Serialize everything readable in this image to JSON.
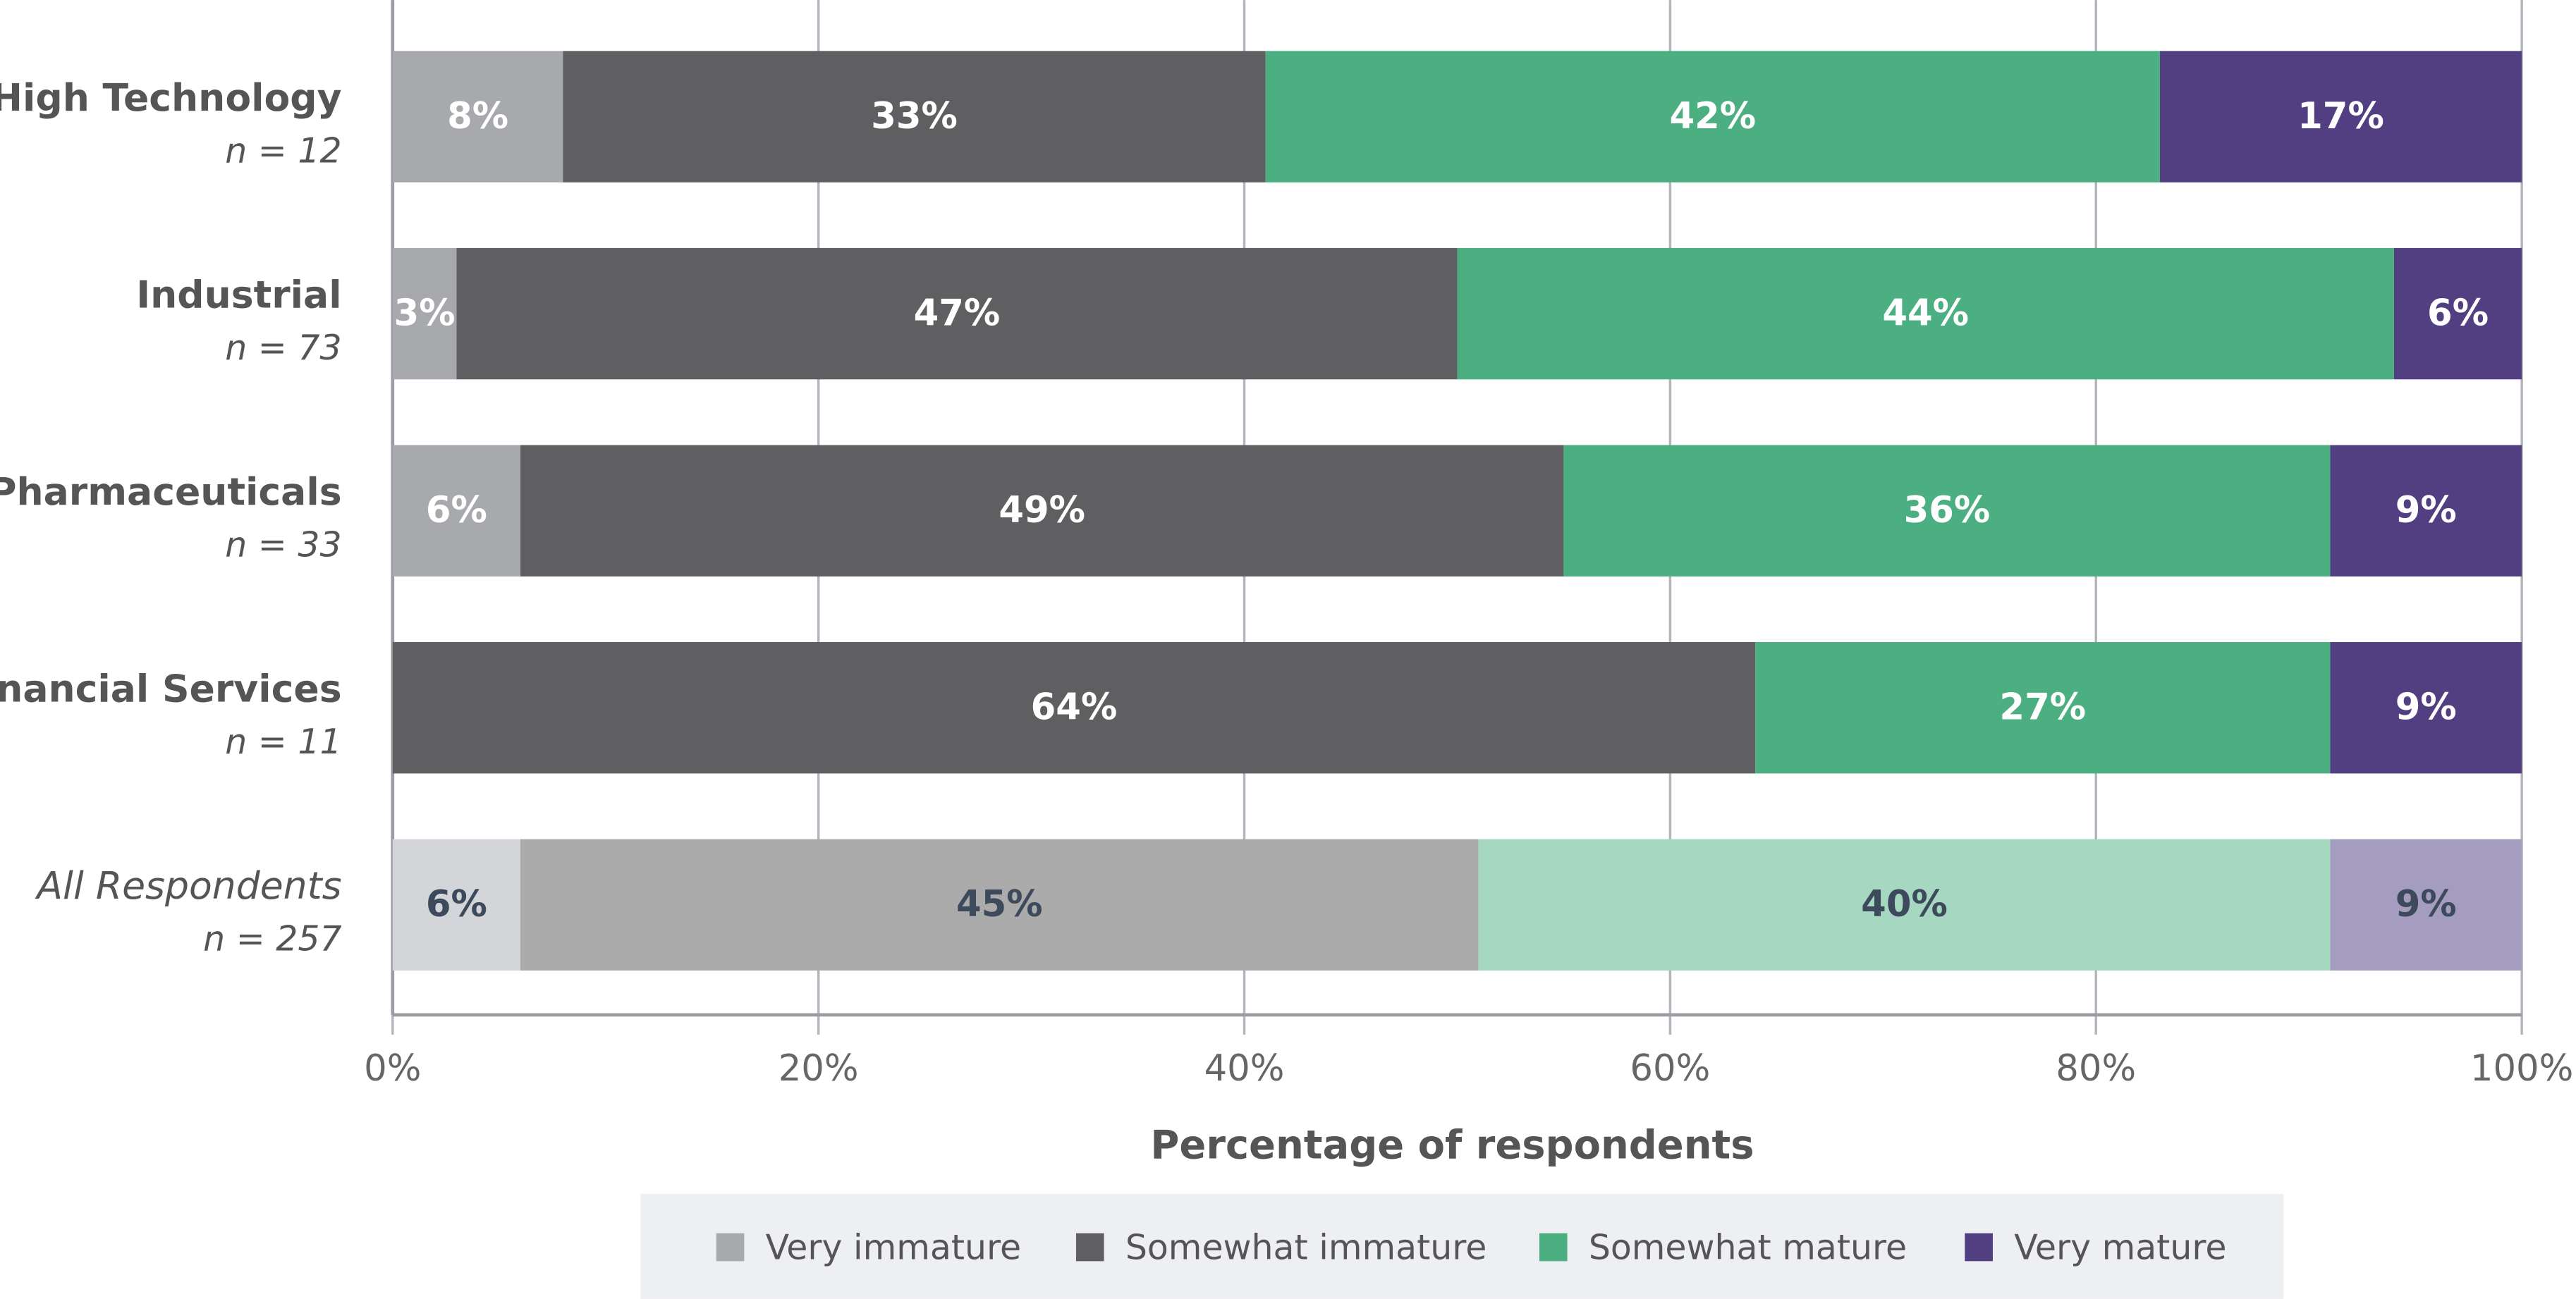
{
  "chart_data": {
    "type": "stacked-bar-horizontal",
    "categories": [
      "High Technology",
      "Industrial",
      "Pharmaceuticals",
      "Financial Services",
      "All Respondents"
    ],
    "sample_sizes": [
      "n = 12",
      "n = 73",
      "n = 33",
      "n = 11",
      "n = 257"
    ],
    "series": [
      {
        "name": "Very immature",
        "color": "#a7a9ac",
        "colors": [
          "#a7a9ac",
          "#a7a9ac",
          "#a7a9ac",
          "#a7a9ac",
          "#d3d5d9"
        ],
        "values": [
          8,
          3,
          6,
          0,
          6
        ],
        "value_labels": [
          "8%",
          "3%",
          "6%",
          null,
          "6%"
        ]
      },
      {
        "name": "Somewhat immature",
        "color": "#5f5e61",
        "colors": [
          "#5f5e61",
          "#5f5e61",
          "#5f5e61",
          "#5f5e61",
          "#ababab"
        ],
        "values": [
          33,
          47,
          49,
          64,
          45
        ],
        "value_labels": [
          "33%",
          "47%",
          "49%",
          "64%",
          "45%"
        ]
      },
      {
        "name": "Somewhat mature",
        "color": "#4caf82",
        "colors": [
          "#4caf82",
          "#4caf82",
          "#4caf82",
          "#4caf82",
          "#a6d7c1"
        ],
        "values": [
          42,
          44,
          36,
          27,
          40
        ],
        "value_labels": [
          "42%",
          "44%",
          "36%",
          "27%",
          "40%"
        ]
      },
      {
        "name": "Very mature",
        "color": "#523f82",
        "colors": [
          "#523f82",
          "#523f82",
          "#523f82",
          "#523f82",
          "#a59dbf"
        ],
        "values": [
          17,
          6,
          9,
          9,
          9
        ],
        "value_labels": [
          "17%",
          "6%",
          "9%",
          "9%",
          "9%"
        ]
      }
    ],
    "xlabel": "Percentage of respondents",
    "xlim": [
      0,
      100
    ],
    "xticks": [
      {
        "value": 0,
        "label": "0%"
      },
      {
        "value": 20,
        "label": "20%"
      },
      {
        "value": 40,
        "label": "40%"
      },
      {
        "value": 60,
        "label": "60%"
      },
      {
        "value": 80,
        "label": "80%"
      },
      {
        "value": 100,
        "label": "100%"
      }
    ],
    "grid": true,
    "legend": "bottom"
  }
}
